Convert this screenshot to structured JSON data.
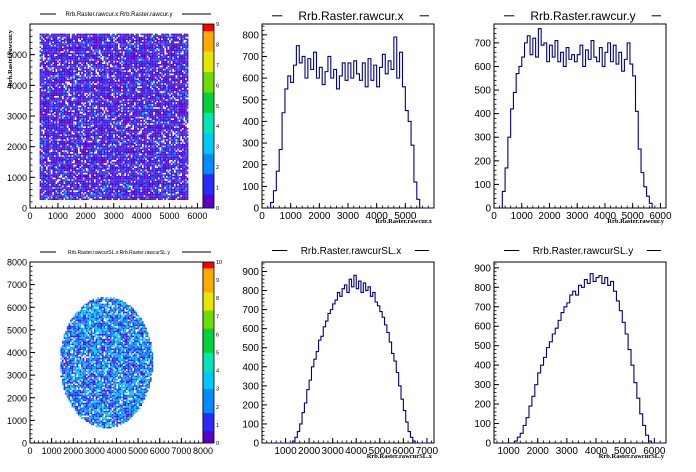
{
  "chart_data": [
    {
      "type": "heatmap",
      "title": "Rrb.Raster.rawcur.x:Rrb.Raster.rawcur.y",
      "xlabel": "",
      "ylabel": "Rrb.Raster.rawcur.y",
      "xlim": [
        0,
        6200
      ],
      "ylim": [
        0,
        6000
      ],
      "xticks": [
        0,
        1000,
        2000,
        3000,
        4000,
        5000,
        6000
      ],
      "yticks": [
        0,
        1000,
        2000,
        3000,
        4000,
        5000
      ],
      "zlim": [
        0,
        9
      ],
      "zticks": [
        0,
        1,
        2,
        3,
        4,
        5,
        6,
        7,
        8,
        9
      ],
      "grid": false,
      "fill": {
        "shape": "rect",
        "x_range": [
          300,
          5650
        ],
        "y_range": [
          300,
          5700
        ],
        "dominant_counts": [
          1,
          2
        ]
      }
    },
    {
      "type": "histogram",
      "title": "Rrb.Raster.rawcur.x",
      "xlabel": "Rrb.Raster.rawcur.x",
      "xlim": [
        0,
        6000
      ],
      "ylim": [
        0,
        850
      ],
      "xticks": [
        0,
        1000,
        2000,
        3000,
        4000,
        5000
      ],
      "yticks": [
        0,
        100,
        200,
        300,
        400,
        500,
        600,
        700,
        800
      ],
      "bin_width": 100,
      "bins": [
        {
          "x": 0,
          "y": 0
        },
        {
          "x": 100,
          "y": 0
        },
        {
          "x": 200,
          "y": 0
        },
        {
          "x": 300,
          "y": 25
        },
        {
          "x": 400,
          "y": 80
        },
        {
          "x": 500,
          "y": 170
        },
        {
          "x": 600,
          "y": 270
        },
        {
          "x": 700,
          "y": 440
        },
        {
          "x": 800,
          "y": 550
        },
        {
          "x": 900,
          "y": 610
        },
        {
          "x": 1000,
          "y": 580
        },
        {
          "x": 1100,
          "y": 660
        },
        {
          "x": 1200,
          "y": 750
        },
        {
          "x": 1300,
          "y": 670
        },
        {
          "x": 1400,
          "y": 700
        },
        {
          "x": 1500,
          "y": 600
        },
        {
          "x": 1600,
          "y": 690
        },
        {
          "x": 1700,
          "y": 640
        },
        {
          "x": 1800,
          "y": 720
        },
        {
          "x": 1900,
          "y": 600
        },
        {
          "x": 2000,
          "y": 650
        },
        {
          "x": 2100,
          "y": 570
        },
        {
          "x": 2200,
          "y": 630
        },
        {
          "x": 2300,
          "y": 700
        },
        {
          "x": 2400,
          "y": 600
        },
        {
          "x": 2500,
          "y": 640
        },
        {
          "x": 2600,
          "y": 550
        },
        {
          "x": 2700,
          "y": 610
        },
        {
          "x": 2800,
          "y": 670
        },
        {
          "x": 2900,
          "y": 590
        },
        {
          "x": 3000,
          "y": 670
        },
        {
          "x": 3100,
          "y": 600
        },
        {
          "x": 3200,
          "y": 680
        },
        {
          "x": 3300,
          "y": 620
        },
        {
          "x": 3400,
          "y": 590
        },
        {
          "x": 3500,
          "y": 670
        },
        {
          "x": 3600,
          "y": 560
        },
        {
          "x": 3700,
          "y": 690
        },
        {
          "x": 3800,
          "y": 590
        },
        {
          "x": 3900,
          "y": 660
        },
        {
          "x": 4000,
          "y": 560
        },
        {
          "x": 4100,
          "y": 650
        },
        {
          "x": 4200,
          "y": 710
        },
        {
          "x": 4300,
          "y": 620
        },
        {
          "x": 4400,
          "y": 680
        },
        {
          "x": 4500,
          "y": 640
        },
        {
          "x": 4600,
          "y": 790
        },
        {
          "x": 4700,
          "y": 600
        },
        {
          "x": 4800,
          "y": 720
        },
        {
          "x": 4900,
          "y": 560
        },
        {
          "x": 5000,
          "y": 450
        },
        {
          "x": 5100,
          "y": 400
        },
        {
          "x": 5200,
          "y": 290
        },
        {
          "x": 5300,
          "y": 120
        },
        {
          "x": 5400,
          "y": 40
        },
        {
          "x": 5500,
          "y": 0
        },
        {
          "x": 5600,
          "y": 0
        },
        {
          "x": 5700,
          "y": 0
        },
        {
          "x": 5800,
          "y": 0
        },
        {
          "x": 5900,
          "y": 0
        }
      ]
    },
    {
      "type": "histogram",
      "title": "Rrb.Raster.rawcur.y",
      "xlabel": "Rrb.Raster.rawcur.y",
      "xlim": [
        0,
        6200
      ],
      "ylim": [
        0,
        780
      ],
      "xticks": [
        0,
        1000,
        2000,
        3000,
        4000,
        5000,
        6000
      ],
      "yticks": [
        0,
        100,
        200,
        300,
        400,
        500,
        600,
        700
      ],
      "bin_width": 100,
      "bins": [
        {
          "x": 0,
          "y": 0
        },
        {
          "x": 100,
          "y": 0
        },
        {
          "x": 200,
          "y": 0
        },
        {
          "x": 300,
          "y": 70
        },
        {
          "x": 400,
          "y": 170
        },
        {
          "x": 500,
          "y": 300
        },
        {
          "x": 600,
          "y": 420
        },
        {
          "x": 700,
          "y": 490
        },
        {
          "x": 800,
          "y": 570
        },
        {
          "x": 900,
          "y": 600
        },
        {
          "x": 1000,
          "y": 640
        },
        {
          "x": 1100,
          "y": 700
        },
        {
          "x": 1200,
          "y": 730
        },
        {
          "x": 1300,
          "y": 650
        },
        {
          "x": 1400,
          "y": 720
        },
        {
          "x": 1500,
          "y": 640
        },
        {
          "x": 1600,
          "y": 760
        },
        {
          "x": 1700,
          "y": 690
        },
        {
          "x": 1800,
          "y": 700
        },
        {
          "x": 1900,
          "y": 620
        },
        {
          "x": 2000,
          "y": 690
        },
        {
          "x": 2100,
          "y": 640
        },
        {
          "x": 2200,
          "y": 710
        },
        {
          "x": 2300,
          "y": 620
        },
        {
          "x": 2400,
          "y": 660
        },
        {
          "x": 2500,
          "y": 600
        },
        {
          "x": 2600,
          "y": 680
        },
        {
          "x": 2700,
          "y": 630
        },
        {
          "x": 2800,
          "y": 650
        },
        {
          "x": 2900,
          "y": 620
        },
        {
          "x": 3000,
          "y": 650
        },
        {
          "x": 3100,
          "y": 690
        },
        {
          "x": 3200,
          "y": 600
        },
        {
          "x": 3300,
          "y": 670
        },
        {
          "x": 3400,
          "y": 630
        },
        {
          "x": 3500,
          "y": 710
        },
        {
          "x": 3600,
          "y": 640
        },
        {
          "x": 3700,
          "y": 620
        },
        {
          "x": 3800,
          "y": 680
        },
        {
          "x": 3900,
          "y": 600
        },
        {
          "x": 4000,
          "y": 660
        },
        {
          "x": 4100,
          "y": 700
        },
        {
          "x": 4200,
          "y": 620
        },
        {
          "x": 4300,
          "y": 690
        },
        {
          "x": 4400,
          "y": 610
        },
        {
          "x": 4500,
          "y": 660
        },
        {
          "x": 4600,
          "y": 580
        },
        {
          "x": 4700,
          "y": 630
        },
        {
          "x": 4800,
          "y": 700
        },
        {
          "x": 4900,
          "y": 610
        },
        {
          "x": 5000,
          "y": 560
        },
        {
          "x": 5100,
          "y": 410
        },
        {
          "x": 5200,
          "y": 250
        },
        {
          "x": 5300,
          "y": 150
        },
        {
          "x": 5400,
          "y": 90
        },
        {
          "x": 5500,
          "y": 50
        },
        {
          "x": 5600,
          "y": 20
        },
        {
          "x": 5700,
          "y": 0
        },
        {
          "x": 5800,
          "y": 0
        },
        {
          "x": 5900,
          "y": 0
        },
        {
          "x": 6000,
          "y": 0
        },
        {
          "x": 6100,
          "y": 0
        }
      ]
    },
    {
      "type": "heatmap",
      "title": "Rrb.Raster.rawcurSL.x:Rrb.Raster.rawcurSL.y",
      "xlabel": "",
      "ylabel": "",
      "xlim": [
        0,
        8000
      ],
      "ylim": [
        0,
        8000
      ],
      "xticks": [
        0,
        1000,
        2000,
        3000,
        4000,
        5000,
        6000,
        7000,
        8000
      ],
      "yticks": [
        0,
        1000,
        2000,
        3000,
        4000,
        5000,
        6000,
        7000,
        8000
      ],
      "zlim": [
        0,
        10
      ],
      "zticks": [
        0,
        1,
        2,
        3,
        4,
        5,
        6,
        7,
        8,
        9,
        10
      ],
      "grid": false,
      "fill": {
        "shape": "ellipse",
        "center": [
          3500,
          3600
        ],
        "radius": [
          2150,
          2900
        ],
        "dominant_counts": [
          1,
          2,
          3
        ]
      }
    },
    {
      "type": "histogram",
      "title": "Rrb.Raster.rawcurSL.x",
      "xlabel": "Rrb.Raster.rawcurSL.x",
      "xlim": [
        0,
        7300
      ],
      "ylim": [
        0,
        950
      ],
      "xticks": [
        1000,
        2000,
        3000,
        4000,
        5000,
        6000,
        7000
      ],
      "yticks": [
        0,
        100,
        200,
        300,
        400,
        500,
        600,
        700,
        800,
        900
      ],
      "bin_width": 100,
      "bins": [
        {
          "x": 0,
          "y": 0
        },
        {
          "x": 100,
          "y": 0
        },
        {
          "x": 200,
          "y": 0
        },
        {
          "x": 300,
          "y": 0
        },
        {
          "x": 400,
          "y": 0
        },
        {
          "x": 500,
          "y": 0
        },
        {
          "x": 600,
          "y": 0
        },
        {
          "x": 700,
          "y": 0
        },
        {
          "x": 800,
          "y": 0
        },
        {
          "x": 900,
          "y": 0
        },
        {
          "x": 1000,
          "y": 0
        },
        {
          "x": 1100,
          "y": 0
        },
        {
          "x": 1200,
          "y": 0
        },
        {
          "x": 1300,
          "y": 10
        },
        {
          "x": 1400,
          "y": 30
        },
        {
          "x": 1500,
          "y": 60
        },
        {
          "x": 1600,
          "y": 100
        },
        {
          "x": 1700,
          "y": 160
        },
        {
          "x": 1800,
          "y": 210
        },
        {
          "x": 1900,
          "y": 280
        },
        {
          "x": 2000,
          "y": 330
        },
        {
          "x": 2100,
          "y": 400
        },
        {
          "x": 2200,
          "y": 440
        },
        {
          "x": 2300,
          "y": 480
        },
        {
          "x": 2400,
          "y": 540
        },
        {
          "x": 2500,
          "y": 560
        },
        {
          "x": 2600,
          "y": 610
        },
        {
          "x": 2700,
          "y": 640
        },
        {
          "x": 2800,
          "y": 680
        },
        {
          "x": 2900,
          "y": 700
        },
        {
          "x": 3000,
          "y": 730
        },
        {
          "x": 3100,
          "y": 750
        },
        {
          "x": 3200,
          "y": 790
        },
        {
          "x": 3300,
          "y": 770
        },
        {
          "x": 3400,
          "y": 810
        },
        {
          "x": 3500,
          "y": 830
        },
        {
          "x": 3600,
          "y": 790
        },
        {
          "x": 3700,
          "y": 860
        },
        {
          "x": 3800,
          "y": 820
        },
        {
          "x": 3900,
          "y": 880
        },
        {
          "x": 4000,
          "y": 810
        },
        {
          "x": 4100,
          "y": 850
        },
        {
          "x": 4200,
          "y": 790
        },
        {
          "x": 4300,
          "y": 840
        },
        {
          "x": 4400,
          "y": 800
        },
        {
          "x": 4500,
          "y": 820
        },
        {
          "x": 4600,
          "y": 770
        },
        {
          "x": 4700,
          "y": 790
        },
        {
          "x": 4800,
          "y": 740
        },
        {
          "x": 4900,
          "y": 720
        },
        {
          "x": 5000,
          "y": 690
        },
        {
          "x": 5100,
          "y": 660
        },
        {
          "x": 5200,
          "y": 620
        },
        {
          "x": 5300,
          "y": 580
        },
        {
          "x": 5400,
          "y": 530
        },
        {
          "x": 5500,
          "y": 470
        },
        {
          "x": 5600,
          "y": 430
        },
        {
          "x": 5700,
          "y": 370
        },
        {
          "x": 5800,
          "y": 300
        },
        {
          "x": 5900,
          "y": 230
        },
        {
          "x": 6000,
          "y": 170
        },
        {
          "x": 6100,
          "y": 110
        },
        {
          "x": 6200,
          "y": 60
        },
        {
          "x": 6300,
          "y": 30
        },
        {
          "x": 6400,
          "y": 10
        },
        {
          "x": 6500,
          "y": 0
        },
        {
          "x": 6600,
          "y": 0
        },
        {
          "x": 6700,
          "y": 0
        },
        {
          "x": 6800,
          "y": 0
        },
        {
          "x": 6900,
          "y": 0
        },
        {
          "x": 7000,
          "y": 0
        },
        {
          "x": 7100,
          "y": 0
        },
        {
          "x": 7200,
          "y": 0
        }
      ]
    },
    {
      "type": "histogram",
      "title": "Rrb.Raster.rawcurSL.y",
      "xlabel": "Rrb.Raster.rawcurSL.y",
      "xlim": [
        500,
        6400
      ],
      "ylim": [
        0,
        930
      ],
      "xticks": [
        1000,
        2000,
        3000,
        4000,
        5000,
        6000
      ],
      "yticks": [
        0,
        100,
        200,
        300,
        400,
        500,
        600,
        700,
        800,
        900
      ],
      "bin_width": 100,
      "bins": [
        {
          "x": 500,
          "y": 0
        },
        {
          "x": 600,
          "y": 0
        },
        {
          "x": 700,
          "y": 0
        },
        {
          "x": 800,
          "y": 0
        },
        {
          "x": 900,
          "y": 0
        },
        {
          "x": 1000,
          "y": 0
        },
        {
          "x": 1100,
          "y": 0
        },
        {
          "x": 1200,
          "y": 10
        },
        {
          "x": 1300,
          "y": 30
        },
        {
          "x": 1400,
          "y": 50
        },
        {
          "x": 1500,
          "y": 90
        },
        {
          "x": 1600,
          "y": 130
        },
        {
          "x": 1700,
          "y": 190
        },
        {
          "x": 1800,
          "y": 240
        },
        {
          "x": 1900,
          "y": 300
        },
        {
          "x": 2000,
          "y": 360
        },
        {
          "x": 2100,
          "y": 400
        },
        {
          "x": 2200,
          "y": 440
        },
        {
          "x": 2300,
          "y": 490
        },
        {
          "x": 2400,
          "y": 520
        },
        {
          "x": 2500,
          "y": 560
        },
        {
          "x": 2600,
          "y": 590
        },
        {
          "x": 2700,
          "y": 630
        },
        {
          "x": 2800,
          "y": 670
        },
        {
          "x": 2900,
          "y": 700
        },
        {
          "x": 3000,
          "y": 720
        },
        {
          "x": 3100,
          "y": 760
        },
        {
          "x": 3200,
          "y": 780
        },
        {
          "x": 3300,
          "y": 760
        },
        {
          "x": 3400,
          "y": 810
        },
        {
          "x": 3500,
          "y": 800
        },
        {
          "x": 3600,
          "y": 840
        },
        {
          "x": 3700,
          "y": 820
        },
        {
          "x": 3800,
          "y": 870
        },
        {
          "x": 3900,
          "y": 830
        },
        {
          "x": 4000,
          "y": 850
        },
        {
          "x": 4100,
          "y": 860
        },
        {
          "x": 4200,
          "y": 820
        },
        {
          "x": 4300,
          "y": 850
        },
        {
          "x": 4400,
          "y": 810
        },
        {
          "x": 4500,
          "y": 830
        },
        {
          "x": 4600,
          "y": 780
        },
        {
          "x": 4700,
          "y": 730
        },
        {
          "x": 4800,
          "y": 680
        },
        {
          "x": 4900,
          "y": 620
        },
        {
          "x": 5000,
          "y": 560
        },
        {
          "x": 5100,
          "y": 480
        },
        {
          "x": 5200,
          "y": 400
        },
        {
          "x": 5300,
          "y": 310
        },
        {
          "x": 5400,
          "y": 230
        },
        {
          "x": 5500,
          "y": 150
        },
        {
          "x": 5600,
          "y": 90
        },
        {
          "x": 5700,
          "y": 40
        },
        {
          "x": 5800,
          "y": 10
        },
        {
          "x": 5900,
          "y": 0
        },
        {
          "x": 6000,
          "y": 0
        },
        {
          "x": 6100,
          "y": 0
        },
        {
          "x": 6200,
          "y": 0
        },
        {
          "x": 6300,
          "y": 0
        }
      ]
    }
  ],
  "colors": {
    "histogram_line": "#00008b",
    "palette": [
      "#ffffff",
      "#5a00c8",
      "#2a2aff",
      "#008cff",
      "#00c8ff",
      "#00e6b4",
      "#00d23c",
      "#6edc00",
      "#e6e600",
      "#ffaa00",
      "#ff0000"
    ],
    "axis": "#000000",
    "background": "#ffffff"
  }
}
